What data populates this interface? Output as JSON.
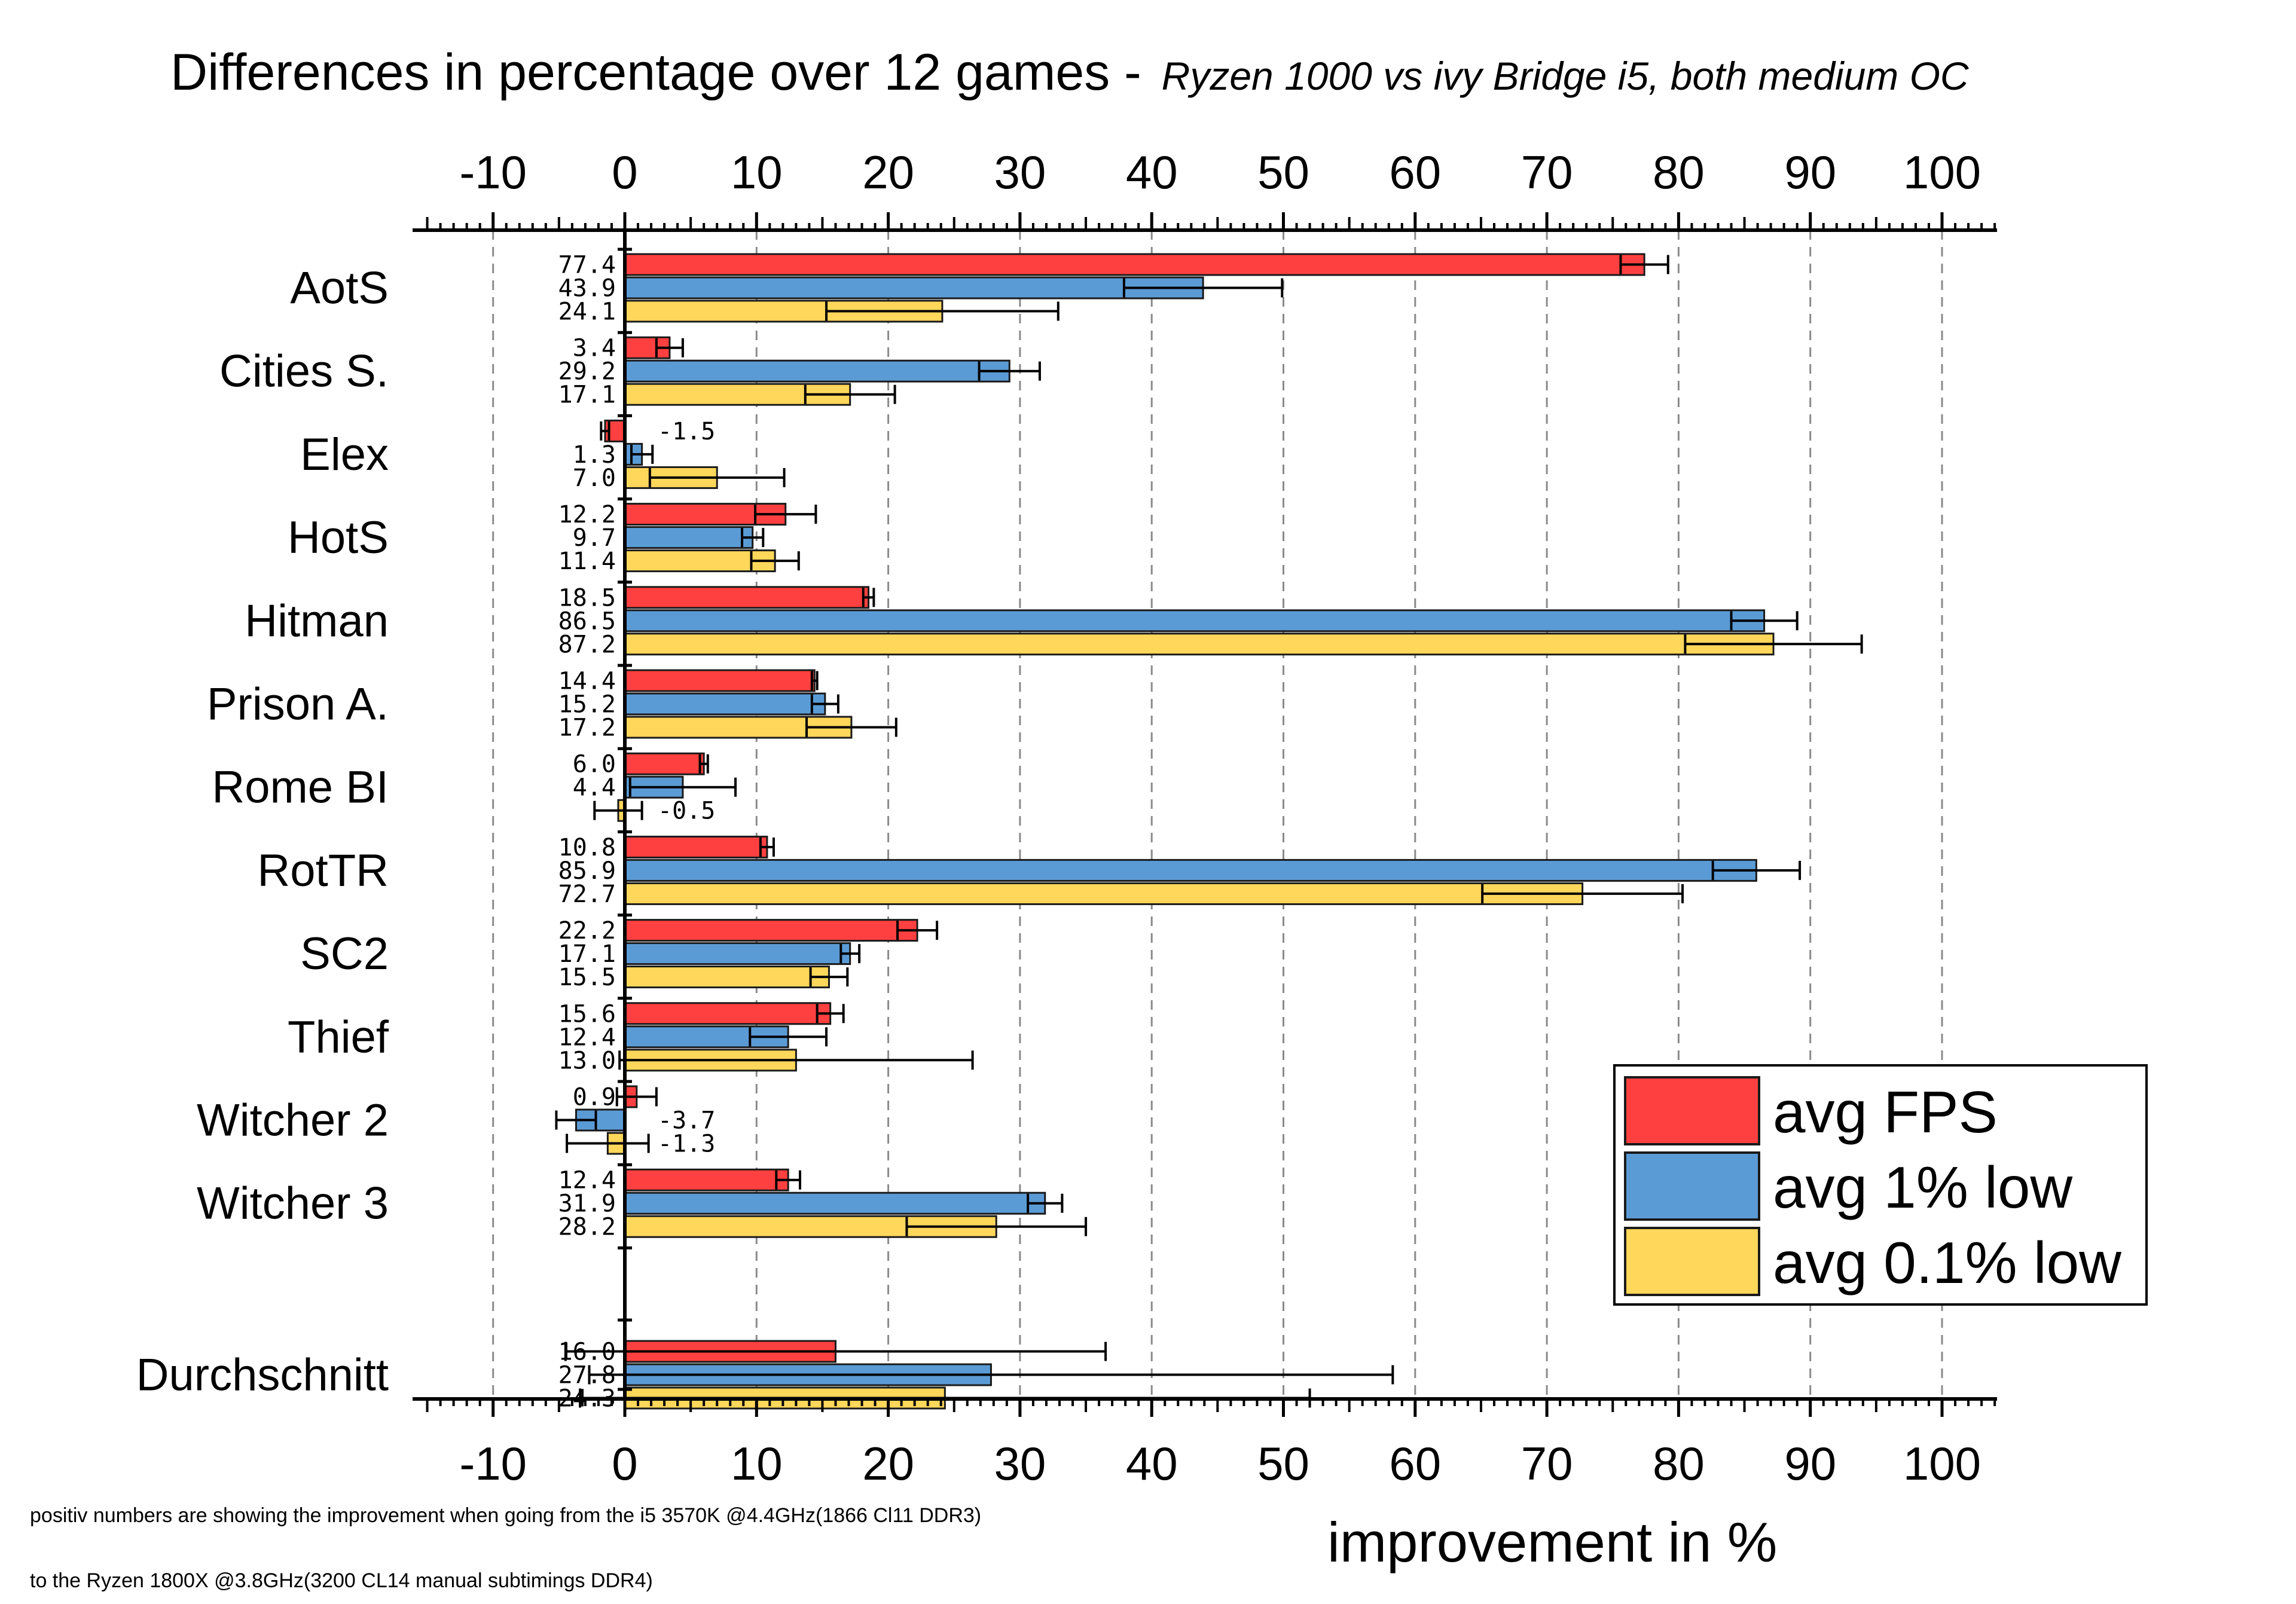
{
  "chart_data": {
    "type": "bar",
    "orientation": "horizontal",
    "title": "Differences in percentage over 12 games - ",
    "subtitle": "Ryzen 1000 vs ivy Bridge i5, both medium OC",
    "xlabel": "improvement in %",
    "xlim": [
      -15,
      104
    ],
    "xticks": [
      -10,
      0,
      10,
      20,
      30,
      40,
      50,
      60,
      70,
      80,
      90,
      100
    ],
    "categories": [
      "AotS",
      "Cities S.",
      "Elex",
      "HotS",
      "Hitman",
      "Prison A.",
      "Rome BI",
      "RotTR",
      "SC2",
      "Thief",
      "Witcher 2",
      "Witcher 3",
      "Durchschnitt"
    ],
    "series": [
      {
        "name": "avg FPS",
        "color": "#ff4040",
        "values": [
          77.4,
          3.4,
          -1.5,
          12.2,
          18.5,
          14.4,
          6.0,
          10.8,
          22.2,
          15.6,
          0.9,
          12.4,
          16.0
        ],
        "labels": [
          "77.4",
          "3.4",
          "-1.5",
          "12.2",
          "18.5",
          "14.4",
          "6.0",
          "10.8",
          "22.2",
          "15.6",
          "0.9",
          "12.4",
          "16.0"
        ],
        "errors": [
          1.8,
          1.0,
          0.3,
          2.3,
          0.4,
          0.2,
          0.3,
          0.5,
          1.5,
          1.0,
          1.5,
          0.9,
          20.5
        ]
      },
      {
        "name": "avg 1% low",
        "color": "#5b9bd5",
        "values": [
          43.9,
          29.2,
          1.3,
          9.7,
          86.5,
          15.2,
          4.4,
          85.9,
          17.1,
          12.4,
          -3.7,
          31.9,
          27.8
        ],
        "labels": [
          "43.9",
          "29.2",
          "1.3",
          "9.7",
          "86.5",
          "15.2",
          "4.4",
          "85.9",
          "17.1",
          "12.4",
          "-3.7",
          "31.9",
          "27.8"
        ],
        "errors": [
          6.0,
          2.3,
          0.8,
          0.8,
          2.5,
          1.0,
          4.0,
          3.3,
          0.7,
          2.9,
          1.5,
          1.3,
          30.5
        ]
      },
      {
        "name": "avg 0.1% low",
        "color": "#ffd75a",
        "values": [
          24.1,
          17.1,
          7.0,
          11.4,
          87.2,
          17.2,
          -0.5,
          72.7,
          15.5,
          13.0,
          -1.3,
          28.2,
          24.3
        ],
        "labels": [
          "24.1",
          "17.1",
          "7.0",
          "11.4",
          "87.2",
          "17.2",
          "-0.5",
          "72.7",
          "15.5",
          "13.0",
          "-1.3",
          "28.2",
          "24.3"
        ],
        "errors": [
          8.8,
          3.4,
          5.1,
          1.8,
          6.7,
          3.4,
          1.8,
          7.6,
          1.4,
          13.4,
          3.1,
          6.8,
          27.7
        ]
      }
    ],
    "grid": "vertical dashed",
    "legend": "bottom-right"
  },
  "footnote": {
    "line1": "positiv numbers are showing the improvement when going from the i5 3570K @4.4GHz(1866 Cl11 DDR3)",
    "line2": "to the Ryzen 1800X @3.8GHz(3200 CL14 manual subtimings DDR4)"
  }
}
